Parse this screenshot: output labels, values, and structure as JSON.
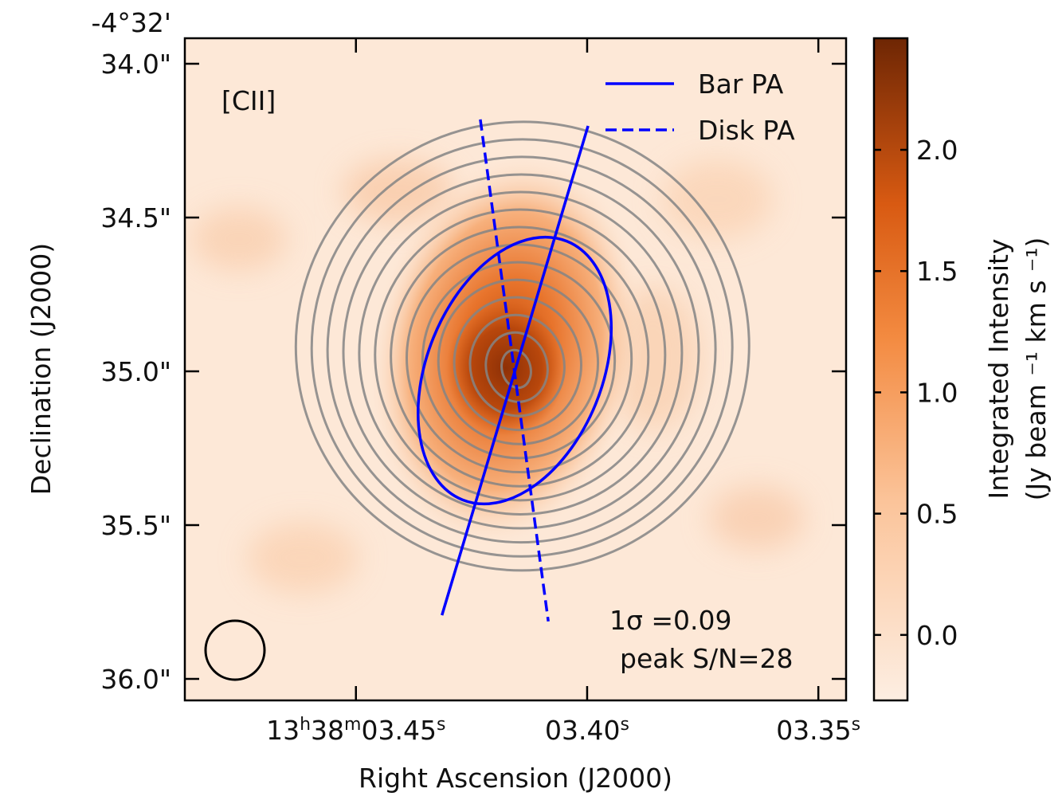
{
  "chart_data": {
    "type": "image",
    "xlabel": "Right Ascension (J2000)",
    "ylabel": "Declination (J2000)",
    "y_prefix_label": "-4°32'",
    "xlim": [
      3.487,
      3.344
    ],
    "ylim": [
      33.917,
      36.07
    ],
    "xticks": [
      {
        "value": 3.45,
        "label": "13h38m03.45s"
      },
      {
        "value": 3.4,
        "label": "03.40s"
      },
      {
        "value": 3.35,
        "label": "03.35s"
      }
    ],
    "yticks": [
      {
        "value": 34.0,
        "label": "34.0\""
      },
      {
        "value": 34.5,
        "label": "34.5\""
      },
      {
        "value": 35.0,
        "label": "35.0\""
      },
      {
        "value": 35.5,
        "label": "35.5\""
      },
      {
        "value": 36.0,
        "label": "36.0\""
      }
    ],
    "colorbar": {
      "label_lines": [
        "Integrated Intensity",
        "(Jy beam ⁻¹ km s ⁻¹)"
      ],
      "clim": [
        -0.27,
        2.46
      ],
      "ticks": [
        {
          "value": 0.0,
          "label": "0.0"
        },
        {
          "value": 0.5,
          "label": "0.5"
        },
        {
          "value": 1.0,
          "label": "1.0"
        },
        {
          "value": 1.5,
          "label": "1.5"
        },
        {
          "value": 2.0,
          "label": "2.0"
        }
      ]
    },
    "series": [
      {
        "name": "Bar PA",
        "color": "#0000ff",
        "linestyle": "solid",
        "x": [
          3.4314,
          3.3998
        ],
        "y": [
          35.793,
          34.202
        ]
      },
      {
        "name": "Disk PA",
        "color": "#0000ff",
        "linestyle": "dashed",
        "x": [
          3.4231,
          3.4084
        ],
        "y": [
          34.181,
          35.813
        ]
      }
    ],
    "legend": "upper right",
    "annotations": [
      "[CII]",
      "1σ =0.09",
      "peak S/N=28"
    ]
  }
}
